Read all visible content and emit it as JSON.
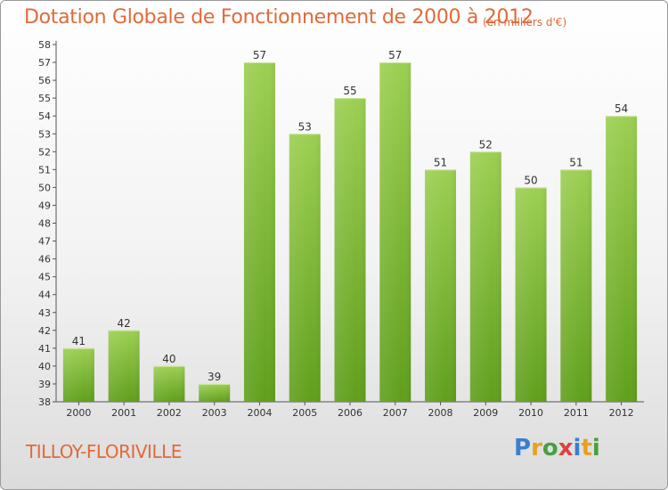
{
  "title": "Dotation Globale de Fonctionnement de 2000 à 2012",
  "subtitle": "(en milliers d'€)",
  "commune": "TILLOY-FLORIVILLE",
  "logo": {
    "text": "Proxiti",
    "letters": [
      {
        "char": "P",
        "color": "#3a7fd0"
      },
      {
        "char": "r",
        "color": "#e8a020"
      },
      {
        "char": "o",
        "color": "#48a040"
      },
      {
        "char": "x",
        "color": "#e04040"
      },
      {
        "char": "i",
        "color": "#3a7fd0"
      },
      {
        "char": "t",
        "color": "#e8a020"
      },
      {
        "char": "i",
        "color": "#48a040"
      }
    ]
  },
  "chart_data": {
    "type": "bar",
    "categories": [
      "2000",
      "2001",
      "2002",
      "2003",
      "2004",
      "2005",
      "2006",
      "2007",
      "2008",
      "2009",
      "2010",
      "2011",
      "2012"
    ],
    "values": [
      41,
      42,
      40,
      39,
      57,
      53,
      55,
      57,
      51,
      52,
      50,
      51,
      54
    ],
    "ylim": [
      38,
      58
    ],
    "yticks": [
      38,
      39,
      40,
      41,
      42,
      43,
      44,
      45,
      46,
      47,
      48,
      49,
      50,
      51,
      52,
      53,
      54,
      55,
      56,
      57,
      58
    ],
    "grid": false,
    "bar_color": "#6fae2a"
  }
}
